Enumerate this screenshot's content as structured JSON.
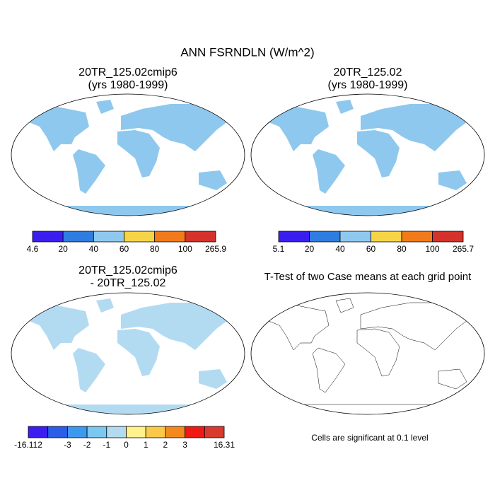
{
  "title": "ANN FSRNDLN (W/m^2)",
  "panels": [
    {
      "title_lines": [
        "20TR_125.02cmip6",
        "(yrs 1980-1999)"
      ],
      "colorbar": {
        "colors": [
          "#3a1ef0",
          "#2f7de0",
          "#8fc8ee",
          "#f5d547",
          "#f27a1b",
          "#d4322a"
        ],
        "labels": [
          4.6,
          20,
          40,
          60,
          80,
          100,
          265.9
        ]
      }
    },
    {
      "title_lines": [
        "20TR_125.02",
        "(yrs 1980-1999)"
      ],
      "colorbar": {
        "colors": [
          "#3a1ef0",
          "#2f7de0",
          "#8fc8ee",
          "#f5d547",
          "#f27a1b",
          "#d4322a"
        ],
        "labels": [
          5.1,
          20,
          40,
          60,
          80,
          100,
          265.7
        ]
      }
    },
    {
      "title_lines": [
        "20TR_125.02cmip6",
        "- 20TR_125.02"
      ],
      "colorbar": {
        "colors": [
          "#3c1ef0",
          "#2b5de8",
          "#3b9aee",
          "#78c8f0",
          "#b2dbf2",
          "#fff18c",
          "#fbc94a",
          "#f58a1c",
          "#f01a14",
          "#d83a2e"
        ],
        "labels": [
          -16.112,
          null,
          -3,
          -2,
          -1,
          0,
          1,
          2,
          3,
          null,
          16.31
        ]
      }
    },
    {
      "title_lines": [
        "T-Test of two Case means at each grid point"
      ],
      "note": "Cells are significant at 0.1 level"
    }
  ]
}
